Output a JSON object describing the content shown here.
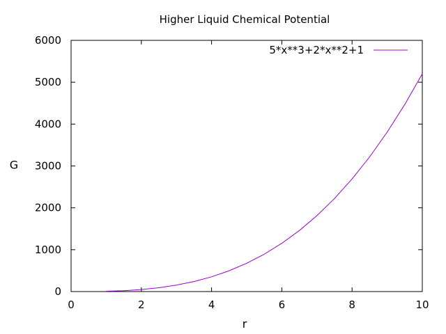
{
  "chart_data": {
    "type": "line",
    "title": "Higher Liquid Chemical Potential",
    "xlabel": "r",
    "ylabel": "G",
    "xlim": [
      0,
      10
    ],
    "ylim": [
      0,
      6000
    ],
    "xticks": [
      0,
      2,
      4,
      6,
      8,
      10
    ],
    "yticks": [
      0,
      1000,
      2000,
      3000,
      4000,
      5000,
      6000
    ],
    "xtick_labels": [
      "0",
      "2",
      "4",
      "6",
      "8",
      "10"
    ],
    "ytick_labels": [
      "0",
      "1000",
      "2000",
      "3000",
      "4000",
      "5000",
      "6000"
    ],
    "grid": false,
    "legend_position": "top-right",
    "series": [
      {
        "name": "5*x**3+2*x**2+1",
        "color": "#9400d3",
        "x": [
          1,
          1.5,
          2,
          2.5,
          3,
          3.5,
          4,
          4.5,
          5,
          5.5,
          6,
          6.5,
          7,
          7.5,
          8,
          8.5,
          9,
          9.5,
          10
        ],
        "y": [
          8,
          22,
          49,
          91,
          154,
          239,
          353,
          497,
          676,
          893,
          1153,
          1458,
          1814,
          2222,
          2689,
          3216,
          3808,
          4468,
          5201
        ]
      }
    ]
  }
}
